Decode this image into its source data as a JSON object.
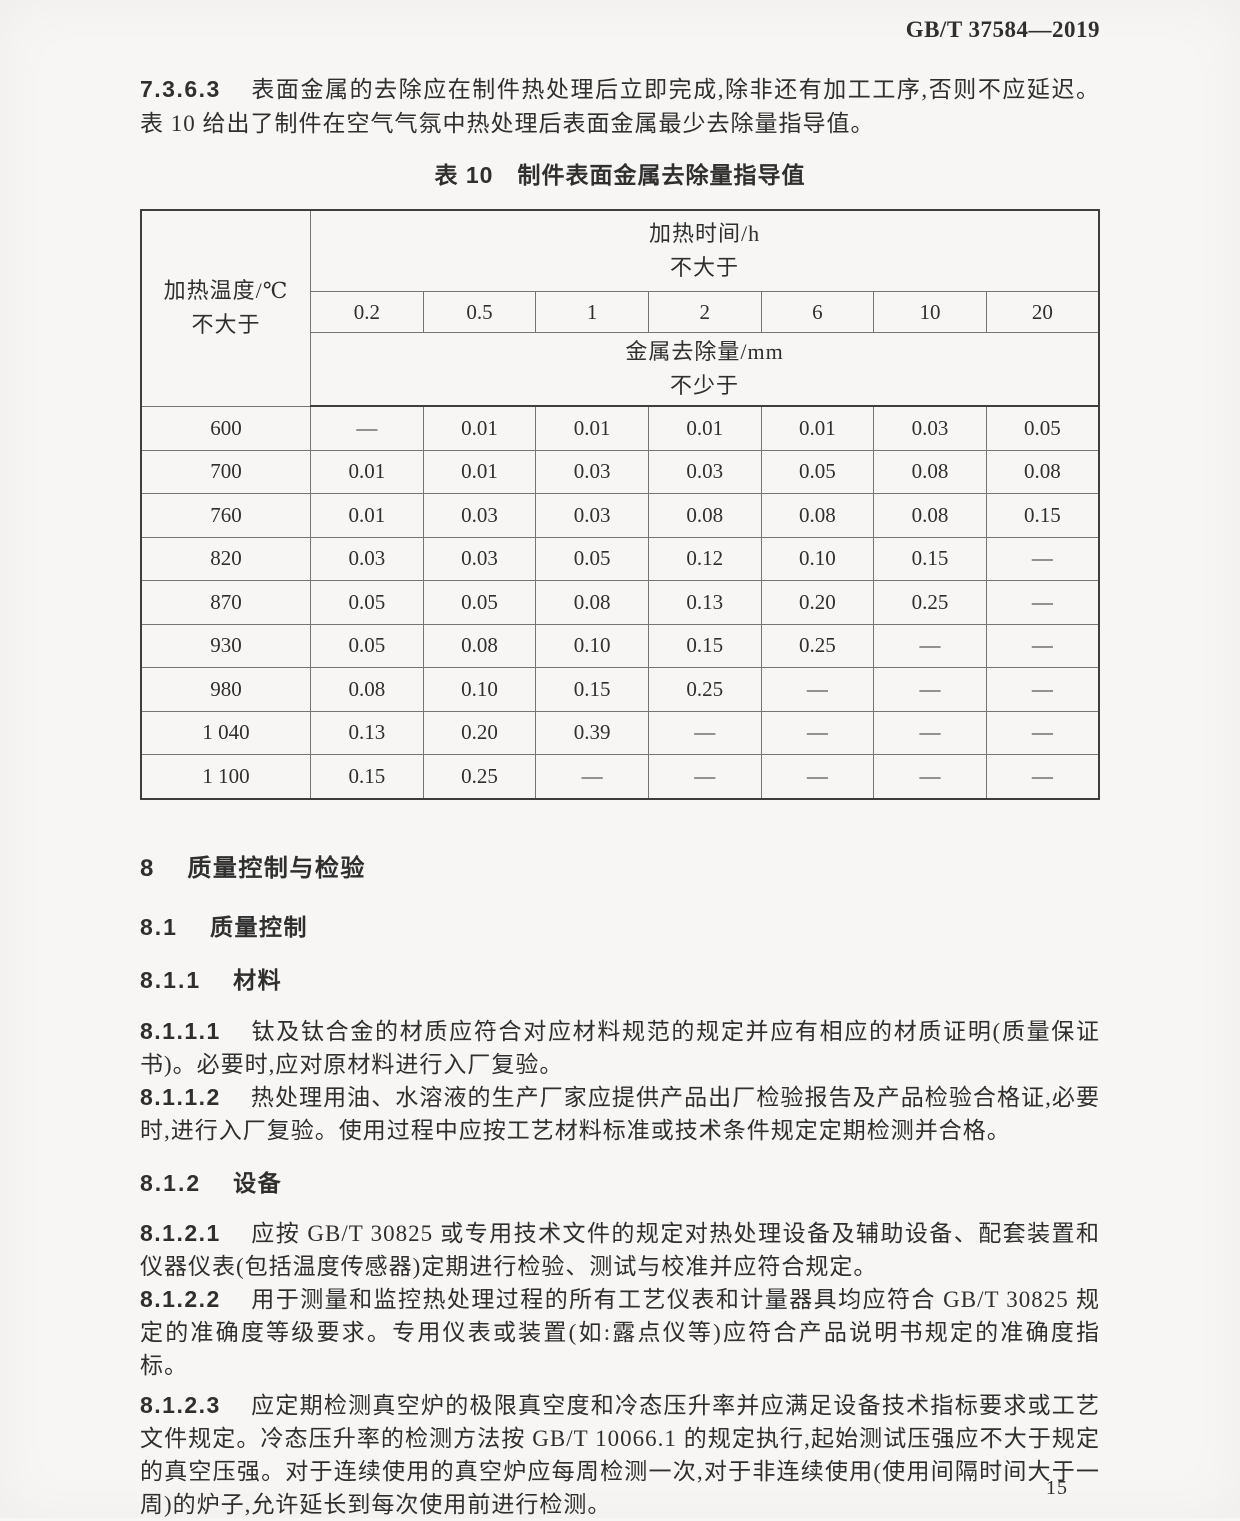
{
  "page": {
    "standard_ref": "GB/T 37584—2019",
    "page_number": "15"
  },
  "colors": {
    "ink": "#2f2f2f",
    "border_heavy": "#3e3e3e",
    "border_light": "#757575",
    "page_background": "#f7f6f4"
  },
  "intro_paragraph": {
    "clause": "7.3.6.3",
    "text": "表面金属的去除应在制件热处理后立即完成,除非还有加工工序,否则不应延迟。表 10 给出了制件在空气气氛中热处理后表面金属最少去除量指导值。"
  },
  "table": {
    "caption": "表 10　制件表面金属去除量指导值",
    "corner_header": {
      "line1": "加热温度/℃",
      "line2": "不大于"
    },
    "time_header": {
      "line1": "加热时间/h",
      "line2": "不大于"
    },
    "time_values": [
      "0.2",
      "0.5",
      "1",
      "2",
      "6",
      "10",
      "20"
    ],
    "removal_header": {
      "line1": "金属去除量/mm",
      "line2": "不少于"
    },
    "rows": [
      {
        "temp": "600",
        "values": [
          "—",
          "0.01",
          "0.01",
          "0.01",
          "0.01",
          "0.03",
          "0.05"
        ]
      },
      {
        "temp": "700",
        "values": [
          "0.01",
          "0.01",
          "0.03",
          "0.03",
          "0.05",
          "0.08",
          "0.08"
        ]
      },
      {
        "temp": "760",
        "values": [
          "0.01",
          "0.03",
          "0.03",
          "0.08",
          "0.08",
          "0.08",
          "0.15"
        ]
      },
      {
        "temp": "820",
        "values": [
          "0.03",
          "0.03",
          "0.05",
          "0.12",
          "0.10",
          "0.15",
          "—"
        ]
      },
      {
        "temp": "870",
        "values": [
          "0.05",
          "0.05",
          "0.08",
          "0.13",
          "0.20",
          "0.25",
          "—"
        ]
      },
      {
        "temp": "930",
        "values": [
          "0.05",
          "0.08",
          "0.10",
          "0.15",
          "0.25",
          "—",
          "—"
        ]
      },
      {
        "temp": "980",
        "values": [
          "0.08",
          "0.10",
          "0.15",
          "0.25",
          "—",
          "—",
          "—"
        ]
      },
      {
        "temp": "1 040",
        "values": [
          "0.13",
          "0.20",
          "0.39",
          "—",
          "—",
          "—",
          "—"
        ]
      },
      {
        "temp": "1 100",
        "values": [
          "0.15",
          "0.25",
          "—",
          "—",
          "—",
          "—",
          "—"
        ]
      }
    ]
  },
  "sections": {
    "s8": {
      "number": "8",
      "title": "质量控制与检验"
    },
    "s81": {
      "number": "8.1",
      "title": "质量控制"
    },
    "s811": {
      "number": "8.1.1",
      "title": "材料"
    },
    "p8111": {
      "clause": "8.1.1.1",
      "text": "钛及钛合金的材质应符合对应材料规范的规定并应有相应的材质证明(质量保证书)。必要时,应对原材料进行入厂复验。"
    },
    "p8112": {
      "clause": "8.1.1.2",
      "text": "热处理用油、水溶液的生产厂家应提供产品出厂检验报告及产品检验合格证,必要时,进行入厂复验。使用过程中应按工艺材料标准或技术条件规定定期检测并合格。"
    },
    "s812": {
      "number": "8.1.2",
      "title": "设备"
    },
    "p8121": {
      "clause": "8.1.2.1",
      "text": "应按 GB/T 30825 或专用技术文件的规定对热处理设备及辅助设备、配套装置和仪器仪表(包括温度传感器)定期进行检验、测试与校准并应符合规定。"
    },
    "p8122": {
      "clause": "8.1.2.2",
      "text": "用于测量和监控热处理过程的所有工艺仪表和计量器具均应符合 GB/T 30825 规定的准确度等级要求。专用仪表或装置(如:露点仪等)应符合产品说明书规定的准确度指标。"
    },
    "p8123": {
      "clause": "8.1.2.3",
      "text": "应定期检测真空炉的极限真空度和冷态压升率并应满足设备技术指标要求或工艺文件规定。冷态压升率的检测方法按 GB/T 10066.1 的规定执行,起始测试压强应不大于规定的真空压强。对于连续使用的真空炉应每周检测一次,对于非连续使用(使用间隔时间大于一周)的炉子,允许延长到每次使用前进行检测。"
    }
  }
}
